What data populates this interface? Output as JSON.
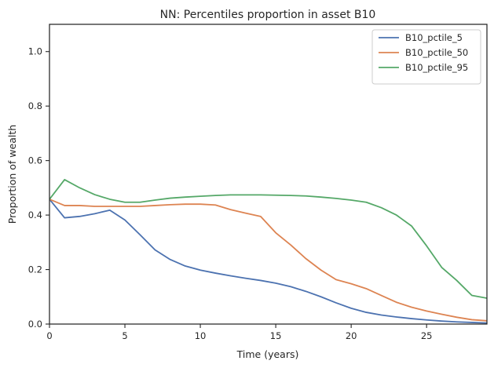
{
  "chart_data": {
    "type": "line",
    "title": "NN: Percentiles proportion in asset B10",
    "xlabel": "Time (years)",
    "ylabel": "Proportion of wealth",
    "xlim": [
      0,
      29
    ],
    "ylim": [
      0,
      1.1
    ],
    "x_ticks": [
      0,
      5,
      10,
      15,
      20,
      25
    ],
    "y_ticks": [
      0.0,
      0.2,
      0.4,
      0.6,
      0.8,
      1.0
    ],
    "x_tick_labels": [
      "0",
      "5",
      "10",
      "15",
      "20",
      "25"
    ],
    "y_tick_labels": [
      "0.0",
      "0.2",
      "0.4",
      "0.6",
      "0.8",
      "1.0"
    ],
    "grid": false,
    "legend_position": "top-right",
    "x": [
      0,
      1,
      2,
      3,
      4,
      5,
      6,
      7,
      8,
      9,
      10,
      11,
      12,
      13,
      14,
      15,
      16,
      17,
      18,
      19,
      20,
      21,
      22,
      23,
      24,
      25,
      26,
      27,
      28,
      29
    ],
    "series": [
      {
        "name": "B10_pctile_5",
        "color": "#4c72b0",
        "values": [
          0.458,
          0.39,
          0.395,
          0.405,
          0.418,
          0.382,
          0.328,
          0.272,
          0.237,
          0.213,
          0.198,
          0.187,
          0.177,
          0.168,
          0.16,
          0.15,
          0.137,
          0.12,
          0.1,
          0.078,
          0.058,
          0.043,
          0.033,
          0.026,
          0.02,
          0.015,
          0.011,
          0.008,
          0.006,
          0.004
        ]
      },
      {
        "name": "B10_pctile_50",
        "color": "#dd8452",
        "values": [
          0.458,
          0.435,
          0.435,
          0.432,
          0.432,
          0.432,
          0.432,
          0.435,
          0.438,
          0.44,
          0.44,
          0.437,
          0.42,
          0.407,
          0.395,
          0.335,
          0.29,
          0.24,
          0.198,
          0.163,
          0.148,
          0.13,
          0.105,
          0.08,
          0.062,
          0.048,
          0.036,
          0.025,
          0.016,
          0.012
        ]
      },
      {
        "name": "B10_pctile_95",
        "color": "#55a868",
        "values": [
          0.458,
          0.53,
          0.5,
          0.475,
          0.458,
          0.447,
          0.447,
          0.455,
          0.462,
          0.466,
          0.469,
          0.472,
          0.474,
          0.474,
          0.474,
          0.473,
          0.472,
          0.47,
          0.466,
          0.461,
          0.455,
          0.447,
          0.427,
          0.4,
          0.36,
          0.287,
          0.208,
          0.16,
          0.105,
          0.095
        ]
      }
    ]
  }
}
